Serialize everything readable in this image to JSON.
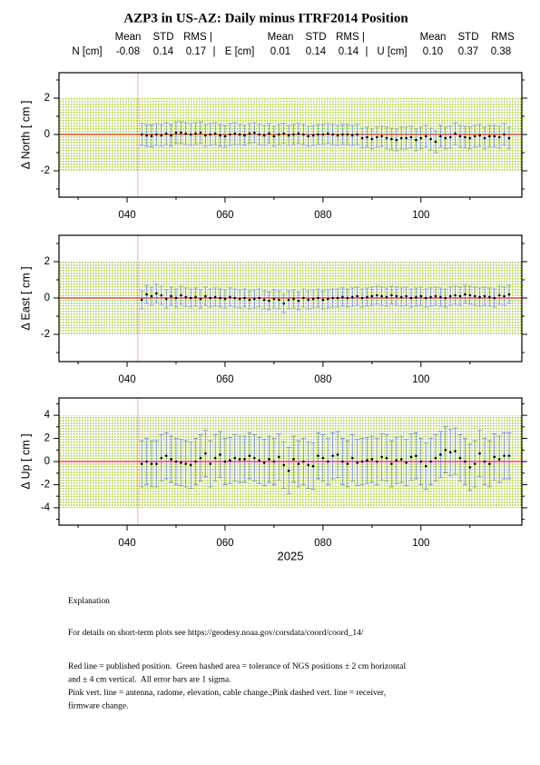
{
  "title": "AZP3 in US-AZ: Daily minus ITRF2014 Position",
  "stats": {
    "headers": [
      [
        "Mean",
        "STD",
        "RMS |"
      ],
      [
        "Mean",
        "STD",
        "RMS |"
      ],
      [
        "Mean",
        "STD",
        "RMS"
      ]
    ],
    "rows": [
      [
        "N [cm]",
        "-0.08",
        "0.14",
        "0.17",
        "|"
      ],
      [
        "E [cm]",
        "0.01",
        "0.14",
        "0.14",
        "|"
      ],
      [
        "U [cm]",
        "0.10",
        "0.37",
        "0.38"
      ]
    ]
  },
  "chart_data": [
    {
      "type": "errorbar",
      "ylabel": "Δ North  [ cm ]",
      "xlim": [
        26.1,
        120.6
      ],
      "ylim": [
        -3.45,
        3.4
      ],
      "xticks": [
        {
          "value": 40,
          "label": "040"
        },
        {
          "value": 60,
          "label": "060"
        },
        {
          "value": 80,
          "label": "080"
        },
        {
          "value": 100,
          "label": "100"
        }
      ],
      "xminor": [
        30,
        50,
        70,
        90,
        110
      ],
      "yticks": [
        -2,
        0,
        2
      ],
      "yminor": [
        -3,
        -1,
        1,
        3
      ],
      "tolerance": [
        -2,
        2
      ],
      "reference": 0,
      "events": [
        42.2
      ],
      "color": "#000000",
      "error_color": "#4a6fd6",
      "tolerance_color": "#a9cd3c",
      "reference_color": "#e8321e",
      "event_color": "#f5a3bf",
      "x": [
        43,
        44,
        45,
        46,
        47,
        48,
        49,
        50,
        51,
        52,
        53,
        54,
        55,
        56,
        57,
        58,
        59,
        60,
        61,
        62,
        63,
        64,
        65,
        66,
        67,
        68,
        69,
        70,
        71,
        72,
        73,
        74,
        75,
        76,
        77,
        78,
        79,
        80,
        81,
        82,
        83,
        84,
        85,
        86,
        87,
        88,
        89,
        90,
        91,
        92,
        93,
        94,
        95,
        96,
        97,
        98,
        99,
        100,
        101,
        102,
        103,
        104,
        105,
        106,
        107,
        108,
        109,
        110,
        111,
        112,
        113,
        114,
        115,
        116,
        117,
        118
      ],
      "values": [
        0.0,
        -0.05,
        -0.08,
        0.0,
        -0.05,
        0.05,
        -0.05,
        0.1,
        0.1,
        0.05,
        0.0,
        0.05,
        0.1,
        -0.05,
        0.0,
        0.05,
        -0.05,
        -0.1,
        0.0,
        0.05,
        0.0,
        -0.05,
        0.05,
        0.1,
        0.0,
        -0.05,
        0.05,
        -0.1,
        0.0,
        0.05,
        -0.05,
        0.0,
        0.05,
        0.0,
        -0.1,
        -0.05,
        0.0,
        0.0,
        0.05,
        0.0,
        -0.05,
        0.0,
        0.0,
        -0.05,
        0.0,
        -0.2,
        -0.15,
        -0.25,
        -0.15,
        -0.1,
        -0.2,
        -0.25,
        -0.3,
        -0.2,
        -0.2,
        -0.15,
        -0.3,
        -0.2,
        -0.1,
        -0.25,
        -0.4,
        -0.1,
        -0.2,
        -0.15,
        0.05,
        -0.1,
        -0.15,
        -0.2,
        -0.1,
        -0.05,
        -0.2,
        -0.1,
        -0.1,
        -0.15,
        0.0,
        -0.2
      ],
      "errors": [
        0.6,
        0.6,
        0.6,
        0.6,
        0.6,
        0.6,
        0.6,
        0.6,
        0.6,
        0.6,
        0.6,
        0.6,
        0.6,
        0.6,
        0.6,
        0.6,
        0.6,
        0.6,
        0.6,
        0.6,
        0.55,
        0.55,
        0.55,
        0.55,
        0.55,
        0.55,
        0.55,
        0.55,
        0.55,
        0.55,
        0.55,
        0.55,
        0.55,
        0.55,
        0.55,
        0.55,
        0.55,
        0.55,
        0.55,
        0.55,
        0.55,
        0.55,
        0.55,
        0.55,
        0.55,
        0.55,
        0.55,
        0.55,
        0.55,
        0.55,
        0.6,
        0.6,
        0.6,
        0.6,
        0.6,
        0.6,
        0.6,
        0.6,
        0.6,
        0.6,
        0.6,
        0.6,
        0.6,
        0.6,
        0.6,
        0.6,
        0.6,
        0.6,
        0.6,
        0.6,
        0.6,
        0.6,
        0.6,
        0.6,
        0.6,
        0.6
      ]
    },
    {
      "type": "errorbar",
      "ylabel": "Δ East  [ cm ]",
      "xlim": [
        26.1,
        120.6
      ],
      "ylim": [
        -3.5,
        3.45
      ],
      "xticks": [
        {
          "value": 40,
          "label": "040"
        },
        {
          "value": 60,
          "label": "060"
        },
        {
          "value": 80,
          "label": "080"
        },
        {
          "value": 100,
          "label": "100"
        }
      ],
      "xminor": [
        30,
        50,
        70,
        90,
        110
      ],
      "yticks": [
        -2,
        0,
        2
      ],
      "yminor": [
        -3,
        -1,
        1,
        3
      ],
      "tolerance": [
        -2,
        2
      ],
      "reference": 0,
      "events": [
        42.2
      ],
      "color": "#000000",
      "error_color": "#4a6fd6",
      "tolerance_color": "#a9cd3c",
      "reference_color": "#e8321e",
      "event_color": "#f5a3bf",
      "x": [
        43,
        44,
        45,
        46,
        47,
        48,
        49,
        50,
        51,
        52,
        53,
        54,
        55,
        56,
        57,
        58,
        59,
        60,
        61,
        62,
        63,
        64,
        65,
        66,
        67,
        68,
        69,
        70,
        71,
        72,
        73,
        74,
        75,
        76,
        77,
        78,
        79,
        80,
        81,
        82,
        83,
        84,
        85,
        86,
        87,
        88,
        89,
        90,
        91,
        92,
        93,
        94,
        95,
        96,
        97,
        98,
        99,
        100,
        101,
        102,
        103,
        104,
        105,
        106,
        107,
        108,
        109,
        110,
        111,
        112,
        113,
        114,
        115,
        116,
        117,
        118
      ],
      "values": [
        -0.1,
        0.2,
        0.1,
        0.25,
        0.15,
        -0.05,
        0.1,
        0.0,
        0.15,
        0.05,
        0.0,
        0.05,
        -0.05,
        0.1,
        0.0,
        0.05,
        0.0,
        -0.05,
        0.05,
        0.0,
        -0.05,
        0.0,
        -0.1,
        -0.05,
        0.0,
        -0.1,
        -0.15,
        -0.05,
        -0.1,
        -0.3,
        -0.1,
        -0.05,
        -0.15,
        0.0,
        -0.1,
        -0.05,
        0.0,
        -0.1,
        -0.05,
        0.0,
        0.0,
        0.05,
        0.0,
        0.05,
        0.1,
        0.0,
        0.05,
        0.1,
        0.15,
        0.1,
        0.05,
        0.15,
        0.1,
        0.05,
        0.1,
        0.0,
        0.05,
        0.1,
        0.0,
        0.05,
        0.1,
        0.05,
        0.0,
        0.1,
        0.15,
        0.1,
        0.2,
        0.15,
        0.1,
        0.05,
        0.1,
        0.05,
        0.0,
        0.15,
        0.1,
        0.2
      ],
      "errors": [
        0.5,
        0.5,
        0.5,
        0.5,
        0.5,
        0.5,
        0.5,
        0.5,
        0.5,
        0.5,
        0.5,
        0.5,
        0.5,
        0.5,
        0.5,
        0.5,
        0.5,
        0.5,
        0.5,
        0.5,
        0.5,
        0.5,
        0.5,
        0.5,
        0.5,
        0.5,
        0.5,
        0.5,
        0.5,
        0.5,
        0.5,
        0.5,
        0.5,
        0.5,
        0.5,
        0.5,
        0.5,
        0.5,
        0.5,
        0.5,
        0.5,
        0.5,
        0.5,
        0.5,
        0.5,
        0.5,
        0.5,
        0.5,
        0.5,
        0.5,
        0.5,
        0.5,
        0.5,
        0.5,
        0.5,
        0.5,
        0.5,
        0.5,
        0.5,
        0.5,
        0.5,
        0.5,
        0.5,
        0.5,
        0.5,
        0.5,
        0.5,
        0.5,
        0.5,
        0.5,
        0.5,
        0.5,
        0.5,
        0.5,
        0.5,
        0.5
      ]
    },
    {
      "type": "errorbar",
      "ylabel": "Δ Up  [ cm ]",
      "xlabel": "2025",
      "xlim": [
        26.1,
        120.6
      ],
      "ylim": [
        -5.5,
        5.5
      ],
      "xticks": [
        {
          "value": 40,
          "label": "040"
        },
        {
          "value": 60,
          "label": "060"
        },
        {
          "value": 80,
          "label": "080"
        },
        {
          "value": 100,
          "label": "100"
        }
      ],
      "xminor": [
        30,
        50,
        70,
        90,
        110
      ],
      "yticks": [
        -4,
        -2,
        0,
        2,
        4
      ],
      "yminor": [
        -5,
        -3,
        -1,
        1,
        3,
        5
      ],
      "tolerance": [
        -4,
        4
      ],
      "reference": 0,
      "events": [
        42.2
      ],
      "color": "#000000",
      "error_color": "#4a6fd6",
      "tolerance_color": "#a9cd3c",
      "reference_color": "#e8321e",
      "event_color": "#f5a3bf",
      "x": [
        43,
        44,
        45,
        46,
        47,
        48,
        49,
        50,
        51,
        52,
        53,
        54,
        55,
        56,
        57,
        58,
        59,
        60,
        61,
        62,
        63,
        64,
        65,
        66,
        67,
        68,
        69,
        70,
        71,
        72,
        73,
        74,
        75,
        76,
        77,
        78,
        79,
        80,
        81,
        82,
        83,
        84,
        85,
        86,
        87,
        88,
        89,
        90,
        91,
        92,
        93,
        94,
        95,
        96,
        97,
        98,
        99,
        100,
        101,
        102,
        103,
        104,
        105,
        106,
        107,
        108,
        109,
        110,
        111,
        112,
        113,
        114,
        115,
        116,
        117,
        118
      ],
      "values": [
        -0.2,
        0.0,
        -0.2,
        -0.2,
        0.3,
        0.5,
        0.2,
        0.0,
        -0.1,
        -0.2,
        -0.3,
        0.0,
        0.3,
        0.7,
        -0.2,
        0.3,
        0.6,
        0.0,
        0.1,
        0.3,
        0.2,
        0.2,
        0.5,
        0.3,
        0.1,
        -0.1,
        0.2,
        0.0,
        0.4,
        -0.3,
        -0.8,
        0.2,
        -0.2,
        0.0,
        -0.3,
        -0.4,
        0.5,
        0.3,
        0.0,
        0.5,
        0.6,
        0.0,
        -0.2,
        0.3,
        -0.1,
        0.0,
        0.1,
        0.2,
        0.0,
        0.4,
        0.3,
        -0.2,
        0.1,
        0.2,
        -0.1,
        0.4,
        0.5,
        0.0,
        -0.4,
        0.0,
        0.3,
        0.6,
        1.0,
        0.8,
        0.9,
        0.3,
        0.0,
        -0.5,
        -0.2,
        0.7,
        0.0,
        -0.2,
        0.4,
        0.2,
        0.5,
        0.5
      ],
      "errors": [
        2.0,
        2.0,
        2.0,
        2.0,
        2.0,
        2.0,
        2.0,
        2.0,
        2.0,
        2.0,
        2.0,
        2.0,
        2.0,
        2.0,
        2.0,
        2.0,
        2.0,
        2.0,
        2.0,
        2.0,
        2.0,
        2.0,
        2.0,
        2.0,
        2.0,
        2.0,
        2.0,
        2.0,
        2.0,
        2.0,
        2.0,
        2.0,
        2.0,
        2.0,
        2.0,
        2.0,
        2.0,
        2.0,
        2.0,
        2.0,
        2.0,
        2.0,
        2.0,
        2.0,
        2.0,
        2.0,
        2.0,
        2.0,
        2.0,
        2.0,
        2.0,
        2.0,
        2.0,
        2.0,
        2.0,
        2.0,
        2.0,
        2.0,
        2.0,
        2.0,
        2.0,
        2.0,
        2.0,
        2.0,
        2.0,
        2.0,
        2.0,
        2.0,
        2.0,
        2.0,
        2.0,
        2.0,
        2.0,
        2.0,
        2.0,
        2.0
      ]
    }
  ],
  "explanation": {
    "heading": "Explanation",
    "details": "For details on short-term plots see https://geodesy.noaa.gov/corsdata/coord/coord_14/",
    "notes": [
      "Red line = published position.  Green hashed area = tolerance of NGS positions ± 2 cm horizontal",
      "and ± 4 cm vertical.  All error bars are 1 sigma.",
      "Pink vert. line = antenna, radome, elevation, cable change.;Pink dashed vert. line = receiver,",
      "firmware change."
    ]
  }
}
